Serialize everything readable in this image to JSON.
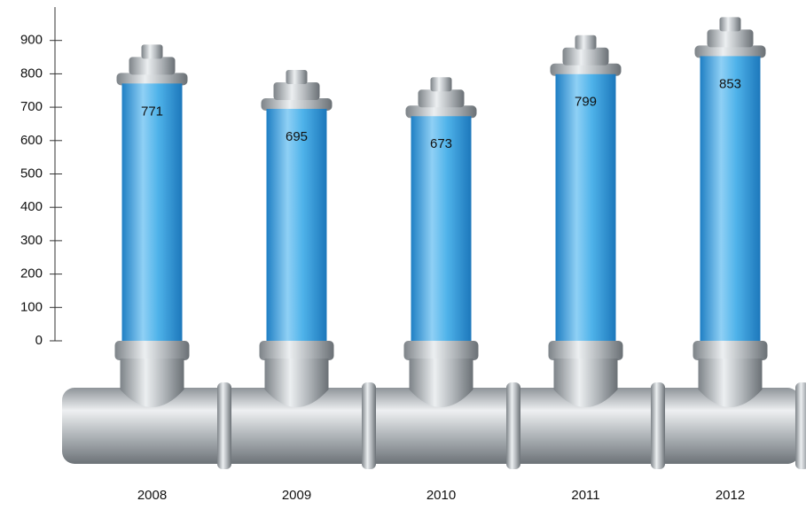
{
  "chart_data": {
    "type": "bar",
    "categories": [
      "2008",
      "2009",
      "2010",
      "2011",
      "2012"
    ],
    "values": [
      771,
      695,
      673,
      799,
      853
    ],
    "color": "#3aa6e0",
    "ylim": [
      0,
      1000
    ],
    "yticks": [
      0,
      100,
      200,
      300,
      400,
      500,
      600,
      700,
      800,
      900
    ]
  }
}
